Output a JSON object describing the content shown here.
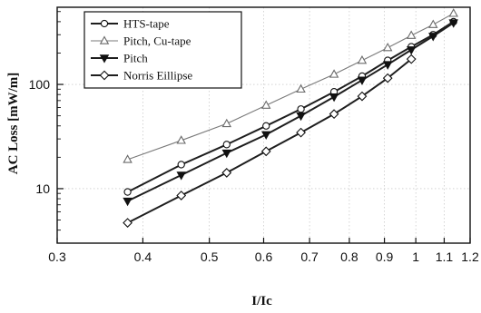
{
  "chart_data": {
    "type": "line",
    "xlabel": "I/Ic",
    "ylabel": "AC Loss [mW/m]",
    "xscale": "log",
    "yscale": "log",
    "xlim": [
      0.3,
      1.2
    ],
    "ylim": [
      3,
      550
    ],
    "grid": true,
    "legend": "top-left",
    "x_ticks": [
      {
        "value": 0.3,
        "label": "0.3"
      },
      {
        "value": 0.4,
        "label": "0.4"
      },
      {
        "value": 0.5,
        "label": "0.5"
      },
      {
        "value": 0.6,
        "label": "0.6"
      },
      {
        "value": 0.7,
        "label": "0.7"
      },
      {
        "value": 0.8,
        "label": "0.8"
      },
      {
        "value": 0.9,
        "label": "0.9"
      },
      {
        "value": 1.0,
        "label": "1"
      },
      {
        "value": 1.1,
        "label": "1.1"
      },
      {
        "value": 1.2,
        "label": "1.2"
      }
    ],
    "y_ticks": [
      {
        "value": 10,
        "label": "10"
      },
      {
        "value": 100,
        "label": "100"
      }
    ],
    "series": [
      {
        "name": "HTS-tape",
        "marker": "circle",
        "x": [
          0.38,
          0.455,
          0.53,
          0.605,
          0.68,
          0.76,
          0.835,
          0.91,
          0.985,
          1.06,
          1.135
        ],
        "y": [
          9.3,
          17,
          26.5,
          40,
          58,
          85,
          120,
          170,
          230,
          300,
          400
        ]
      },
      {
        "name": "Pitch, Cu-tape",
        "marker": "triangle-up",
        "x": [
          0.38,
          0.455,
          0.53,
          0.605,
          0.68,
          0.76,
          0.835,
          0.91,
          0.985,
          1.06,
          1.135
        ],
        "y": [
          19,
          29,
          42,
          63,
          90,
          125,
          170,
          225,
          295,
          375,
          480
        ]
      },
      {
        "name": "Pitch",
        "marker": "triangle-down",
        "x": [
          0.38,
          0.455,
          0.53,
          0.605,
          0.68,
          0.76,
          0.835,
          0.91,
          0.985,
          1.06,
          1.135
        ],
        "y": [
          7.6,
          13.5,
          22,
          33,
          50,
          76,
          110,
          155,
          215,
          290,
          390
        ]
      },
      {
        "name": "Norris Eillipse",
        "marker": "diamond",
        "x": [
          0.38,
          0.455,
          0.53,
          0.605,
          0.68,
          0.76,
          0.835,
          0.91,
          0.985
        ],
        "y": [
          4.7,
          8.6,
          14.2,
          22.8,
          34.5,
          52,
          77,
          115,
          175
        ]
      }
    ]
  }
}
